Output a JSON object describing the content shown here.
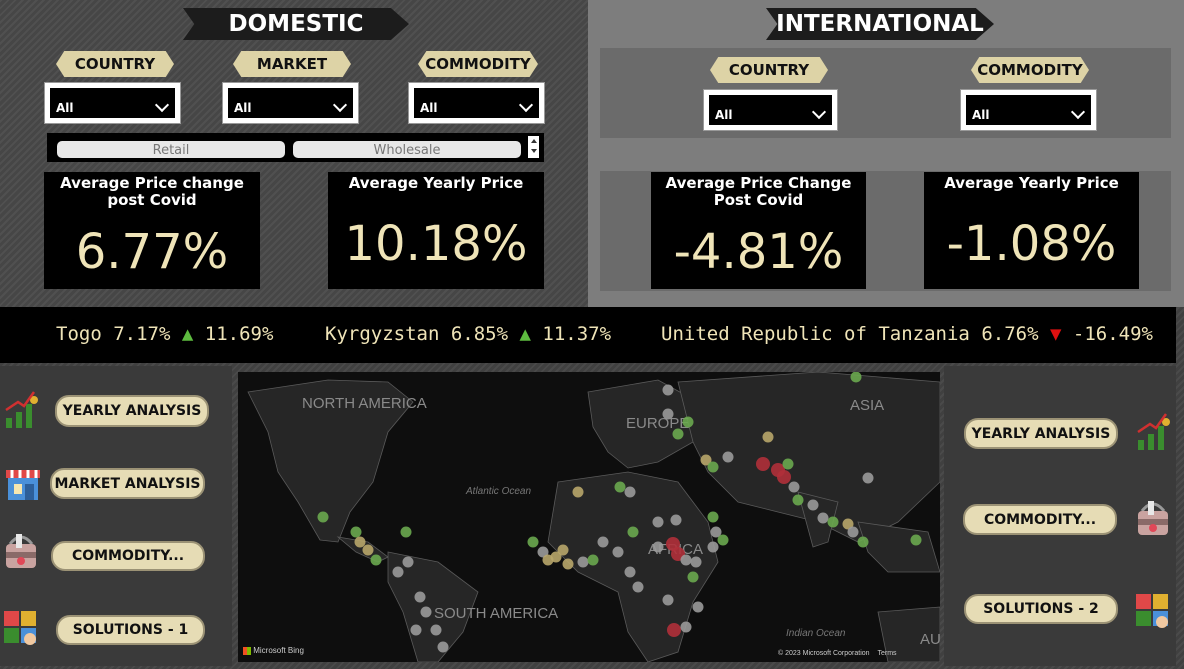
{
  "domestic": {
    "title": "DOMESTIC",
    "filters": [
      {
        "label": "COUNTRY",
        "value": "All"
      },
      {
        "label": "MARKET",
        "value": "All"
      },
      {
        "label": "COMMODITY",
        "value": "All"
      }
    ],
    "toggle": {
      "options": [
        "Retail",
        "Wholesale"
      ]
    },
    "cards": [
      {
        "title": "Average Price change post Covid",
        "value": "6.77%"
      },
      {
        "title": "Average Yearly Price",
        "value": "10.18%"
      }
    ]
  },
  "international": {
    "title": "INTERNATIONAL",
    "filters": [
      {
        "label": "COUNTRY",
        "value": "All"
      },
      {
        "label": "COMMODITY",
        "value": "All"
      }
    ],
    "cards": [
      {
        "title": "Average Price Change Post Covid",
        "value": "-4.81%"
      },
      {
        "title": "Average Yearly Price",
        "value": "-1.08%"
      }
    ]
  },
  "ticker": [
    {
      "country": "Togo",
      "value": "7.17%",
      "arrow": "▲",
      "change": "11.69%",
      "direction": "up"
    },
    {
      "country": "Kyrgyzstan",
      "value": "6.85%",
      "arrow": "▲",
      "change": "11.37%",
      "direction": "up"
    },
    {
      "country": "United Republic of Tanzania",
      "value": "6.76%",
      "arrow": "▼",
      "change": "-16.49%",
      "direction": "down"
    }
  ],
  "left_nav": [
    {
      "label": "YEARLY ANALYSIS",
      "icon": "growth-chart-icon"
    },
    {
      "label": "MARKET ANALYSIS",
      "icon": "market-stall-icon"
    },
    {
      "label": "COMMODITY...",
      "icon": "grocery-basket-icon"
    },
    {
      "label": "SOLUTIONS - 1",
      "icon": "puzzle-icon"
    }
  ],
  "right_nav": [
    {
      "label": "YEARLY ANALYSIS",
      "icon": "growth-chart-icon"
    },
    {
      "label": "COMMODITY...",
      "icon": "grocery-basket-icon"
    },
    {
      "label": "SOLUTIONS - 2",
      "icon": "puzzle-icon"
    }
  ],
  "map": {
    "labels": {
      "north_america": "NORTH AMERICA",
      "south_america": "SOUTH AMERICA",
      "europe": "EUROPE",
      "asia": "ASIA",
      "africa": "AFRICA",
      "atlantic": "Atlantic Ocean",
      "indian": "Indian Ocean",
      "aus": "AU"
    },
    "attribution_logo": "Microsoft Bing",
    "copyright": "© 2023 Microsoft Corporation",
    "terms": "Terms"
  },
  "colors": {
    "card_value": "#efe4b8",
    "pill": "#ddd3a6",
    "up": "#5dbb3f",
    "down": "#e01010",
    "dot_green": "#6aa84f",
    "dot_gray": "#9a9a9a",
    "dot_tan": "#b8a66a",
    "dot_red": "#b0303a"
  }
}
